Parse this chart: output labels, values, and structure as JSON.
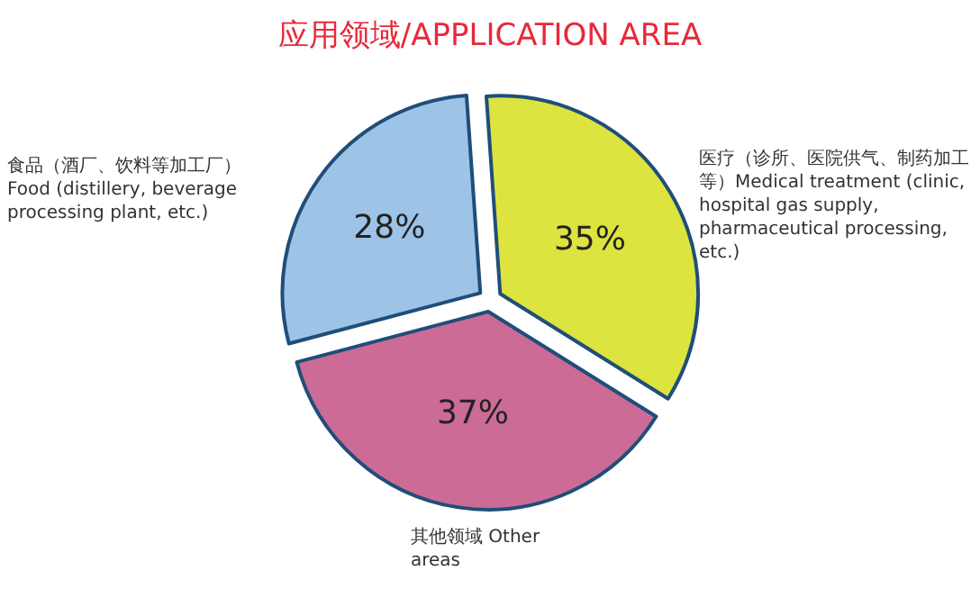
{
  "chart_data": {
    "type": "pie",
    "title": "应用领域/APPLICATION AREA",
    "categories": [
      "医疗（诊所、医院供气、制药加工等）Medical treatment (clinic, hospital gas supply, pharmaceutical processing, etc.)",
      "其他领域 Other areas",
      "食品（酒厂、饮料等加工厂）Food (distillery, beverage processing plant, etc.)"
    ],
    "values": [
      35,
      37,
      28
    ],
    "value_labels": [
      "35%",
      "37%",
      "28%"
    ],
    "colors": [
      "#dde33f",
      "#cc6b95",
      "#9dc3e6"
    ],
    "legend": false
  }
}
